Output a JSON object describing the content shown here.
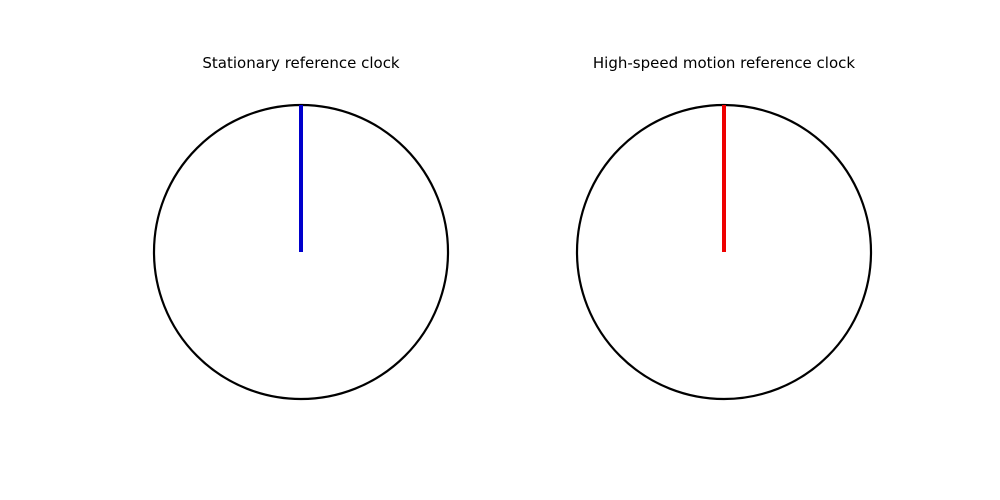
{
  "clocks": [
    {
      "title": "Stationary reference clock",
      "hand_color": "#0000cc",
      "hand_angle_deg": 0
    },
    {
      "title": "High-speed motion reference clock",
      "hand_color": "#ee0000",
      "hand_angle_deg": 0
    }
  ]
}
